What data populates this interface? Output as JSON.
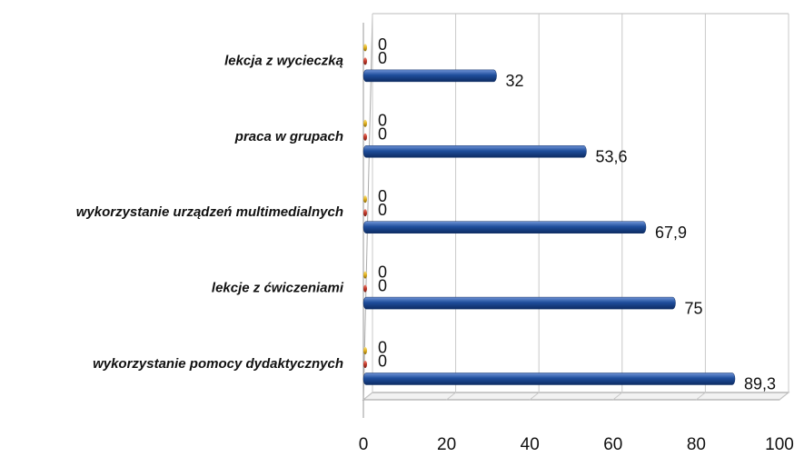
{
  "chart_data": {
    "type": "bar",
    "orientation": "horizontal",
    "categories": [
      "lekcja z wycieczką",
      "praca w grupach",
      "wykorzystanie urządzeń multimedialnych",
      "lekcje z ćwiczeniami",
      "wykorzystanie pomocy dydaktycznych"
    ],
    "series": [
      {
        "color": "#1f4e9c",
        "values": [
          32,
          53.6,
          67.9,
          75,
          89.3
        ],
        "value_labels": [
          "32",
          "53,6",
          "67,9",
          "75",
          "89,3"
        ]
      },
      {
        "color": "#c0392b",
        "values": [
          0,
          0,
          0,
          0,
          0
        ]
      },
      {
        "color": "#e0b020",
        "values": [
          0,
          0,
          0,
          0,
          0
        ]
      }
    ],
    "xlim": [
      0,
      100
    ],
    "xticks": [
      0,
      20,
      40,
      60,
      80,
      100
    ],
    "grid": true
  }
}
